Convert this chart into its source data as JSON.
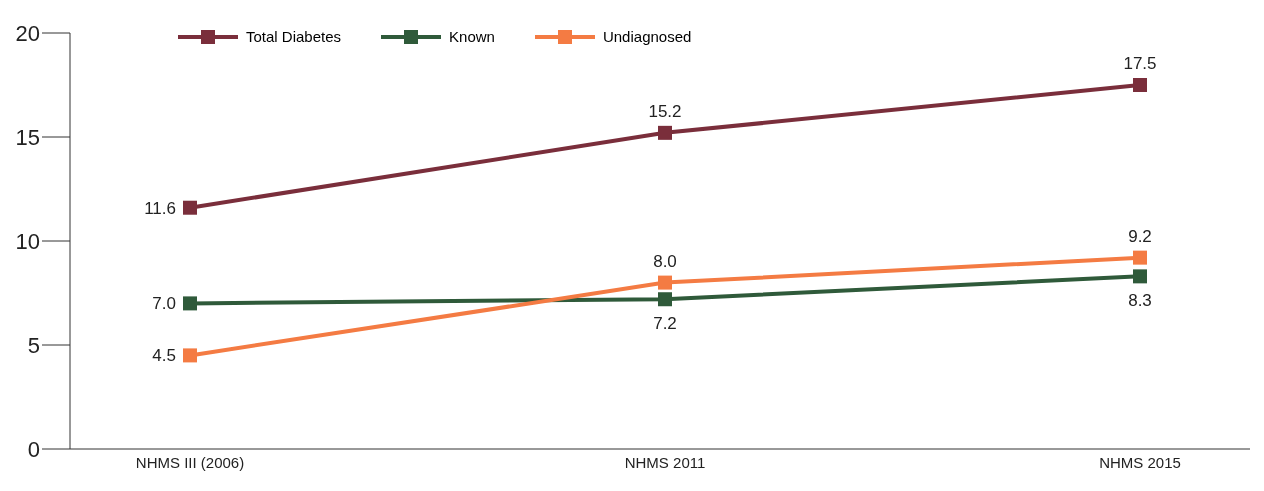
{
  "chart_data": {
    "type": "line",
    "categories": [
      "NHMS III (2006)",
      "NHMS 2011",
      "NHMS 2015"
    ],
    "series": [
      {
        "name": "Total Diabetes",
        "color": "#7a2e3b",
        "values": [
          11.6,
          15.2,
          17.5
        ],
        "value_labels": [
          "11.6",
          "15.2",
          "17.5"
        ]
      },
      {
        "name": "Known",
        "color": "#2f5a3a",
        "values": [
          7.0,
          7.2,
          8.3
        ],
        "value_labels": [
          "7.0",
          "7.2",
          "8.3"
        ]
      },
      {
        "name": "Undiagnosed",
        "color": "#f47b43",
        "values": [
          4.5,
          8.0,
          9.2
        ],
        "value_labels": [
          "4.5",
          "8.0",
          "9.2"
        ]
      }
    ],
    "ylim": [
      0,
      20
    ],
    "yticks": [
      0,
      5,
      10,
      15,
      20
    ],
    "legend": "top left",
    "marker": "square",
    "line_style": "solid"
  }
}
